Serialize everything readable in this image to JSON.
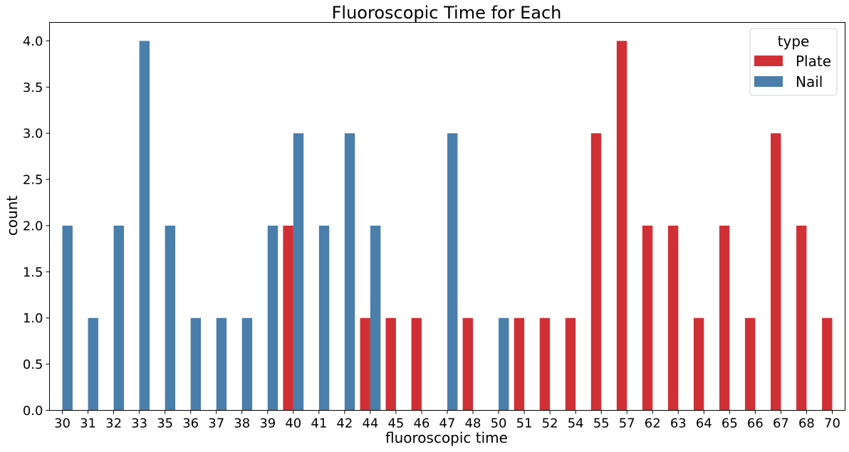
{
  "chart_data": {
    "type": "bar",
    "title": "Fluoroscopic Time for Each",
    "xlabel": "fluoroscopic time",
    "ylabel": "count",
    "ylim": [
      0,
      4.2
    ],
    "yticks": [
      "0.0",
      "0.5",
      "1.0",
      "1.5",
      "2.0",
      "2.5",
      "3.0",
      "3.5",
      "4.0"
    ],
    "grid": false,
    "legend": {
      "title": "type",
      "placement": "top-right"
    },
    "categories": [
      "30",
      "31",
      "32",
      "33",
      "35",
      "36",
      "37",
      "38",
      "39",
      "40",
      "41",
      "42",
      "44",
      "45",
      "46",
      "47",
      "48",
      "50",
      "51",
      "52",
      "54",
      "55",
      "57",
      "62",
      "63",
      "64",
      "65",
      "66",
      "67",
      "68",
      "70"
    ],
    "series": [
      {
        "name": "Plate",
        "color": "#d03035",
        "values": [
          0,
          0,
          0,
          0,
          0,
          0,
          0,
          0,
          0,
          2,
          0,
          0,
          1,
          1,
          1,
          0,
          1,
          0,
          1,
          1,
          1,
          3,
          4,
          2,
          2,
          1,
          2,
          1,
          3,
          2,
          1
        ]
      },
      {
        "name": "Nail",
        "color": "#4a7eab",
        "values": [
          2,
          1,
          2,
          4,
          2,
          1,
          1,
          1,
          2,
          3,
          2,
          3,
          2,
          0,
          0,
          3,
          0,
          1,
          0,
          0,
          0,
          0,
          0,
          0,
          0,
          0,
          0,
          0,
          0,
          0,
          0
        ]
      }
    ]
  }
}
